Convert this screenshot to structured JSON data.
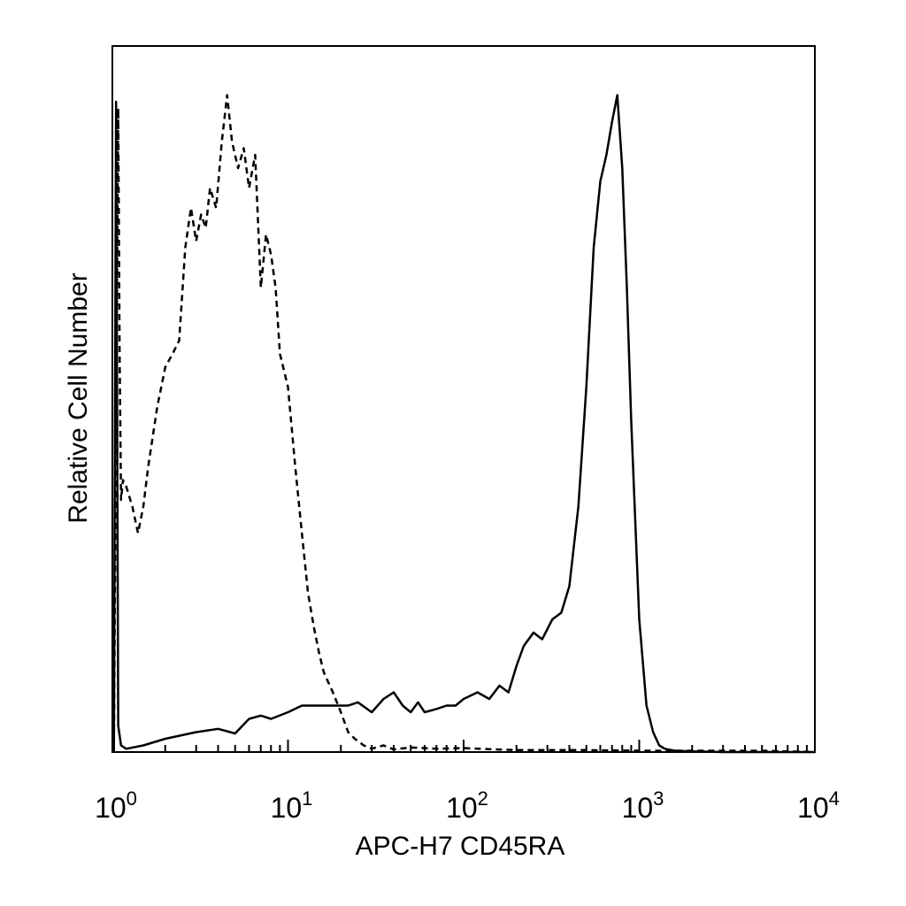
{
  "chart_data": {
    "type": "line",
    "title": "",
    "xlabel": "APC-H7 CD45RA",
    "ylabel": "Relative Cell Number",
    "x_scale": "log",
    "xlim": [
      1,
      10000
    ],
    "ylim": [
      0,
      1
    ],
    "x_tick_labels": [
      {
        "base": "10",
        "exp": "0"
      },
      {
        "base": "10",
        "exp": "1"
      },
      {
        "base": "10",
        "exp": "2"
      },
      {
        "base": "10",
        "exp": "3"
      },
      {
        "base": "10",
        "exp": "4"
      }
    ],
    "grid": false,
    "legend": "none",
    "series": [
      {
        "style": "dashed",
        "x": [
          1.02,
          1.05,
          1.08,
          1.1,
          1.12,
          1.15,
          1.2,
          1.3,
          1.4,
          1.5,
          1.6,
          1.8,
          2.0,
          2.2,
          2.4,
          2.6,
          2.8,
          3.0,
          3.2,
          3.4,
          3.6,
          3.9,
          4.2,
          4.5,
          4.8,
          5.2,
          5.6,
          6.0,
          6.5,
          7.0,
          7.5,
          8.0,
          8.5,
          9.0,
          10.0,
          11.0,
          12.0,
          13.0,
          14.0,
          15.0,
          16.0,
          18.0,
          20.0,
          22.0,
          24.0,
          27.0,
          30.0,
          35.0,
          40.0,
          50.0,
          70.0,
          100.0,
          150.0,
          200.0,
          300.0,
          500.0,
          1000.0,
          2000.0,
          5000.0,
          10000.0
        ],
        "y": [
          0.0,
          0.5,
          0.97,
          0.6,
          0.38,
          0.41,
          0.4,
          0.37,
          0.33,
          0.37,
          0.43,
          0.52,
          0.58,
          0.6,
          0.62,
          0.76,
          0.82,
          0.77,
          0.81,
          0.79,
          0.85,
          0.82,
          0.92,
          0.99,
          0.92,
          0.88,
          0.91,
          0.85,
          0.9,
          0.7,
          0.78,
          0.75,
          0.7,
          0.6,
          0.55,
          0.43,
          0.33,
          0.24,
          0.19,
          0.15,
          0.12,
          0.09,
          0.06,
          0.03,
          0.02,
          0.01,
          0.005,
          0.01,
          0.004,
          0.007,
          0.005,
          0.006,
          0.004,
          0.003,
          0.003,
          0.003,
          0.002,
          0.002,
          0.002,
          0.0
        ]
      },
      {
        "style": "solid",
        "x": [
          1.02,
          1.05,
          1.08,
          1.12,
          1.2,
          1.5,
          2.0,
          3.0,
          4.0,
          5.0,
          6.0,
          7.0,
          8.0,
          10.0,
          12.0,
          15.0,
          18.0,
          22.0,
          25.0,
          30.0,
          35.0,
          40.0,
          45.0,
          50.0,
          55.0,
          60.0,
          70.0,
          80.0,
          90.0,
          100.0,
          120.0,
          140.0,
          160.0,
          180.0,
          200.0,
          220.0,
          250.0,
          280.0,
          320.0,
          360.0,
          400.0,
          450.0,
          500.0,
          550.0,
          600.0,
          650.0,
          700.0,
          750.0,
          800.0,
          850.0,
          900.0,
          1000.0,
          1100.0,
          1200.0,
          1300.0,
          1400.0,
          1600.0,
          2000.0,
          3000.0,
          5000.0,
          10000.0
        ],
        "y": [
          0.0,
          0.98,
          0.04,
          0.01,
          0.005,
          0.01,
          0.02,
          0.03,
          0.035,
          0.028,
          0.05,
          0.055,
          0.05,
          0.06,
          0.07,
          0.07,
          0.07,
          0.07,
          0.075,
          0.06,
          0.08,
          0.09,
          0.07,
          0.06,
          0.075,
          0.06,
          0.065,
          0.07,
          0.07,
          0.08,
          0.09,
          0.08,
          0.1,
          0.09,
          0.13,
          0.16,
          0.18,
          0.17,
          0.2,
          0.21,
          0.25,
          0.37,
          0.55,
          0.76,
          0.86,
          0.9,
          0.95,
          0.99,
          0.88,
          0.7,
          0.5,
          0.2,
          0.07,
          0.03,
          0.01,
          0.005,
          0.002,
          0.001,
          0.0,
          0.0,
          0.0
        ]
      }
    ]
  }
}
